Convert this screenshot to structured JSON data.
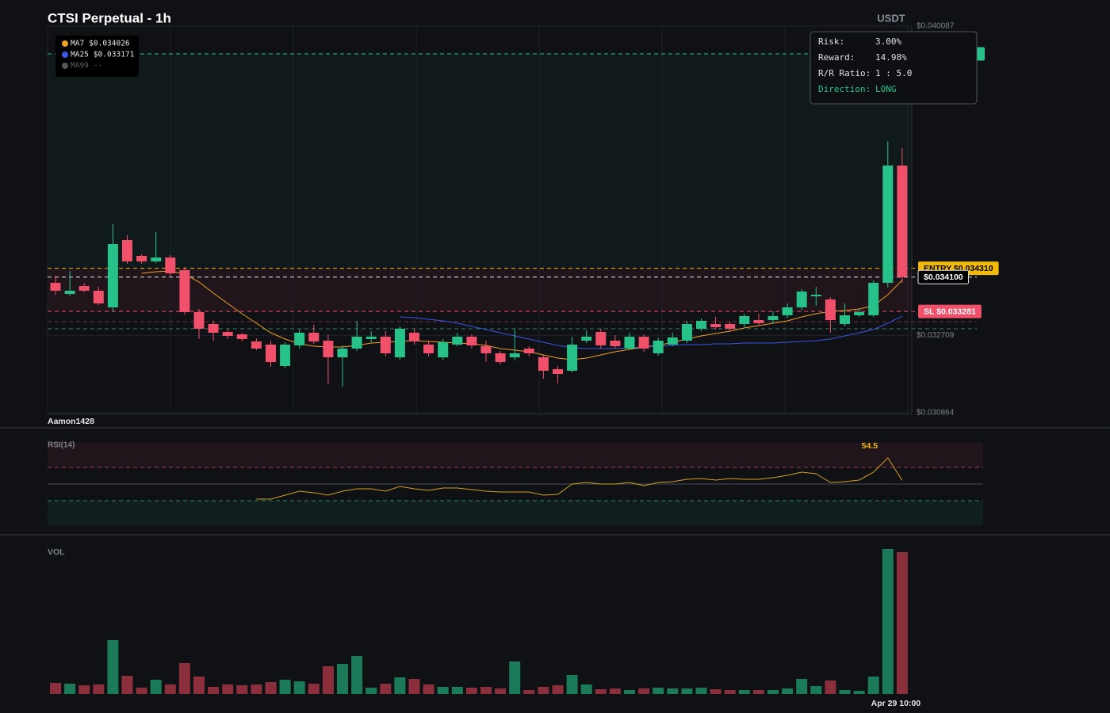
{
  "chart_data": [
    {
      "type": "candlestick",
      "title": "CTSI Perpetual - 1h",
      "quote_currency": "USDT",
      "watermark": "Aamon1428",
      "up_color": "#26c28a",
      "down_color": "#f0506a",
      "grid": true,
      "ylim": [
        0.030864,
        0.040087
      ],
      "yticks": [
        {
          "value": 0.040087,
          "label": "$0.040087"
        },
        {
          "value": 0.032709,
          "label": "$0.032709"
        },
        {
          "value": 0.030864,
          "label": "$0.030864"
        }
      ],
      "open": [
        0.033964,
        0.033699,
        0.033888,
        0.033775,
        0.033378,
        0.034984,
        0.034606,
        0.034474,
        0.034568,
        0.034266,
        0.033264,
        0.032981,
        0.032792,
        0.032735,
        0.032565,
        0.03249,
        0.031979,
        0.032471,
        0.032773,
        0.032584,
        0.032187,
        0.032395,
        0.032622,
        0.032679,
        0.032187,
        0.032773,
        0.03249,
        0.032187,
        0.03249,
        0.032679,
        0.032452,
        0.032282,
        0.032187,
        0.032395,
        0.032187,
        0.031904,
        0.031866,
        0.032584,
        0.032792,
        0.032584,
        0.032395,
        0.032679,
        0.032282,
        0.03249,
        0.032584,
        0.032868,
        0.032981,
        0.032981,
        0.032981,
        0.033075,
        0.033075,
        0.033189,
        0.033378,
        0.033642,
        0.033567,
        0.032981,
        0.033189,
        0.033189,
        0.033964,
        0.036761
      ],
      "high": [
        0.034134,
        0.034247,
        0.033964,
        0.033869,
        0.035362,
        0.035098,
        0.034644,
        0.035173,
        0.034625,
        0.034342,
        0.03334,
        0.033057,
        0.032849,
        0.032773,
        0.032641,
        0.032584,
        0.032546,
        0.032849,
        0.032962,
        0.032735,
        0.032471,
        0.033057,
        0.032811,
        0.032811,
        0.032924,
        0.032868,
        0.032584,
        0.032622,
        0.032773,
        0.032735,
        0.032584,
        0.032338,
        0.032868,
        0.032452,
        0.032244,
        0.031979,
        0.032679,
        0.03283,
        0.032868,
        0.032716,
        0.032773,
        0.032735,
        0.03266,
        0.032773,
        0.033057,
        0.033113,
        0.033151,
        0.033038,
        0.033227,
        0.033227,
        0.033283,
        0.033472,
        0.033812,
        0.033869,
        0.033623,
        0.033472,
        0.03334,
        0.03402,
        0.037347,
        0.037177
      ],
      "low": [
        0.03368,
        0.033661,
        0.033737,
        0.033434,
        0.033283,
        0.034417,
        0.034417,
        0.034436,
        0.034134,
        0.033208,
        0.032622,
        0.032584,
        0.032622,
        0.032565,
        0.032357,
        0.03196,
        0.031923,
        0.032395,
        0.032508,
        0.031545,
        0.031488,
        0.032338,
        0.032546,
        0.032206,
        0.03213,
        0.03249,
        0.032206,
        0.03213,
        0.032452,
        0.032395,
        0.032073,
        0.032017,
        0.032112,
        0.032206,
        0.031677,
        0.031563,
        0.031828,
        0.032527,
        0.032395,
        0.032395,
        0.032357,
        0.032319,
        0.032225,
        0.032452,
        0.032527,
        0.032811,
        0.032849,
        0.032811,
        0.032905,
        0.032943,
        0.033,
        0.033113,
        0.033302,
        0.033416,
        0.032773,
        0.032924,
        0.033151,
        0.033151,
        0.03385,
        0.033964
      ],
      "close": [
        0.033775,
        0.033775,
        0.033775,
        0.033472,
        0.03489,
        0.034474,
        0.034474,
        0.034568,
        0.03419,
        0.033264,
        0.032868,
        0.032773,
        0.032697,
        0.032622,
        0.032395,
        0.032073,
        0.03249,
        0.032773,
        0.032565,
        0.032187,
        0.032395,
        0.032679,
        0.032679,
        0.032282,
        0.032868,
        0.032565,
        0.032282,
        0.032546,
        0.032679,
        0.032471,
        0.032282,
        0.032073,
        0.032282,
        0.032282,
        0.031866,
        0.03179,
        0.03249,
        0.032679,
        0.032471,
        0.032452,
        0.032679,
        0.032395,
        0.032584,
        0.03266,
        0.032981,
        0.033057,
        0.032905,
        0.032868,
        0.03317,
        0.033,
        0.03317,
        0.033378,
        0.033756,
        0.03368,
        0.033075,
        0.033189,
        0.033264,
        0.033964,
        0.036761,
        0.0341
      ],
      "overlays": [
        {
          "name": "MA7",
          "color": "#f0a020",
          "value_label": "$0.034026",
          "values": [
            null,
            null,
            null,
            null,
            null,
            null,
            0.03419,
            0.034228,
            0.034247,
            0.034172,
            0.033983,
            0.033718,
            0.033472,
            0.033227,
            0.033,
            0.032773,
            0.032622,
            0.032508,
            0.032452,
            0.032433,
            0.032433,
            0.032471,
            0.032527,
            0.032546,
            0.032565,
            0.032584,
            0.032565,
            0.032546,
            0.032527,
            0.032508,
            0.032471,
            0.032395,
            0.032357,
            0.032319,
            0.032244,
            0.032168,
            0.03213,
            0.032168,
            0.032244,
            0.032319,
            0.032376,
            0.032433,
            0.032471,
            0.032546,
            0.032622,
            0.032697,
            0.032754,
            0.032811,
            0.032886,
            0.032943,
            0.033,
            0.033057,
            0.033151,
            0.033227,
            0.033283,
            0.033302,
            0.03334,
            0.033416,
            0.03368,
            0.034026
          ]
        },
        {
          "name": "MA25",
          "color": "#3a55e6",
          "value_label": "$0.033171",
          "values": [
            null,
            null,
            null,
            null,
            null,
            null,
            null,
            null,
            null,
            null,
            null,
            null,
            null,
            null,
            null,
            null,
            null,
            null,
            null,
            null,
            null,
            null,
            null,
            null,
            0.033151,
            0.033132,
            0.033094,
            0.033057,
            0.033,
            0.032924,
            0.032849,
            0.032773,
            0.032697,
            0.032622,
            0.032546,
            0.032471,
            0.032414,
            0.032395,
            0.032395,
            0.032395,
            0.032414,
            0.032433,
            0.032452,
            0.032471,
            0.03249,
            0.03249,
            0.032508,
            0.032508,
            0.032527,
            0.032527,
            0.032527,
            0.032546,
            0.032565,
            0.032584,
            0.032622,
            0.032697,
            0.032773,
            0.032849,
            0.033,
            0.033171
          ]
        },
        {
          "name": "MA99",
          "color": "#555555",
          "value_label": "--",
          "values": [
            null,
            null,
            null,
            null,
            null,
            null,
            null,
            null,
            null,
            null,
            null,
            null,
            null,
            null,
            null,
            null,
            null,
            null,
            null,
            null,
            null,
            null,
            null,
            null,
            null,
            null,
            null,
            null,
            null,
            null,
            null,
            null,
            null,
            null,
            null,
            null,
            null,
            null,
            null,
            null,
            null,
            null,
            null,
            null,
            null,
            null,
            null,
            null,
            null,
            null,
            null,
            null,
            null,
            null,
            null,
            null,
            null,
            null,
            null,
            null
          ]
        }
      ],
      "levels": [
        {
          "value": 0.039426,
          "color": "#26c28a",
          "tag": "filled"
        },
        {
          "value": 0.03431,
          "label": "ENTRY $0.034310",
          "color": "#f0b90b",
          "tag": "filled",
          "text_color": "#000000"
        },
        {
          "value": 0.0341,
          "label": "$0.034100",
          "color": "#e6e6e6",
          "tag": "outline",
          "text_color": "#ffffff"
        },
        {
          "value": 0.033281,
          "label": "SL $0.033281",
          "color": "#f0506a",
          "tag": "filled",
          "text_color": "#ffffff"
        },
        {
          "value": 0.033038,
          "color": "#7a3040"
        },
        {
          "value": 0.032868,
          "color": "#3a7a62"
        }
      ],
      "zones": [
        {
          "levels": [
            0,
            1
          ],
          "color": "rgba(38,194,138,0.05)"
        },
        {
          "levels": [
            1,
            3
          ],
          "color": "rgba(240,80,106,0.08)"
        }
      ]
    },
    {
      "type": "line",
      "title": "RSI(14)",
      "color": "#d4a020",
      "label_color": "#f0b90b",
      "ylim": [
        0,
        100
      ],
      "levels": [
        {
          "value": 70,
          "color": "#a03a4c",
          "dash": true
        },
        {
          "value": 50,
          "color": "#4a4f58"
        },
        {
          "value": 30,
          "color": "#2a8a66",
          "dash": true
        }
      ],
      "zones": [
        {
          "level": 0,
          "side": "above",
          "color": "rgba(240,80,106,0.08)"
        },
        {
          "level": 2,
          "side": "below",
          "color": "rgba(38,194,138,0.08)"
        }
      ],
      "values": [
        null,
        null,
        null,
        null,
        null,
        null,
        null,
        null,
        null,
        null,
        null,
        null,
        null,
        null,
        31.9,
        31.9,
        36.7,
        41.4,
        39.5,
        36.7,
        41.4,
        44.3,
        44.3,
        41.4,
        47.1,
        44.3,
        42.4,
        45.2,
        45.2,
        43.3,
        41.4,
        40.5,
        40.5,
        40.5,
        36.7,
        37.6,
        50.0,
        51.9,
        50.0,
        50.0,
        51.9,
        48.1,
        51.9,
        52.9,
        55.7,
        56.7,
        54.8,
        56.7,
        55.7,
        55.7,
        57.6,
        60.5,
        64.3,
        62.4,
        51.9,
        52.9,
        54.8,
        64.3,
        81.4,
        54.5
      ]
    },
    {
      "type": "bar",
      "title": "VOL",
      "up_color": "#1b7a57",
      "down_color": "#8c2f3d",
      "ylim": [
        0,
        200
      ],
      "categories": [
        null,
        null,
        null,
        null,
        null,
        null,
        null,
        null,
        null,
        null,
        null,
        null,
        null,
        null,
        null,
        null,
        null,
        null,
        null,
        null,
        null,
        null,
        null,
        null,
        null,
        null,
        null,
        null,
        null,
        null,
        null,
        null,
        null,
        null,
        null,
        null,
        null,
        null,
        null,
        null,
        null,
        null,
        null,
        null,
        null,
        null,
        null,
        null,
        null,
        null,
        null,
        null,
        null,
        null,
        null,
        null,
        null,
        null,
        null,
        "Apr 29 10:00"
      ],
      "values": [
        14,
        13,
        11,
        12,
        68,
        23,
        8,
        18,
        12,
        39,
        22,
        9,
        12,
        11,
        12,
        15,
        18,
        16,
        13,
        35,
        38,
        48,
        8,
        13,
        21,
        19,
        12,
        9,
        9,
        8,
        9,
        7,
        41,
        5,
        9,
        11,
        24,
        12,
        6,
        7,
        5,
        7,
        8,
        7,
        7,
        8,
        6,
        5,
        5,
        5,
        5,
        7,
        19,
        10,
        17,
        5,
        4,
        22,
        183,
        179
      ]
    }
  ],
  "info_box": {
    "rows": [
      {
        "label": "Risk:",
        "value": "3.00%"
      },
      {
        "label": "Reward:",
        "value": "14.98%"
      },
      {
        "label": "R/R Ratio:",
        "value": "1 : 5.0"
      },
      {
        "label": "Direction:",
        "value": "LONG"
      }
    ]
  }
}
